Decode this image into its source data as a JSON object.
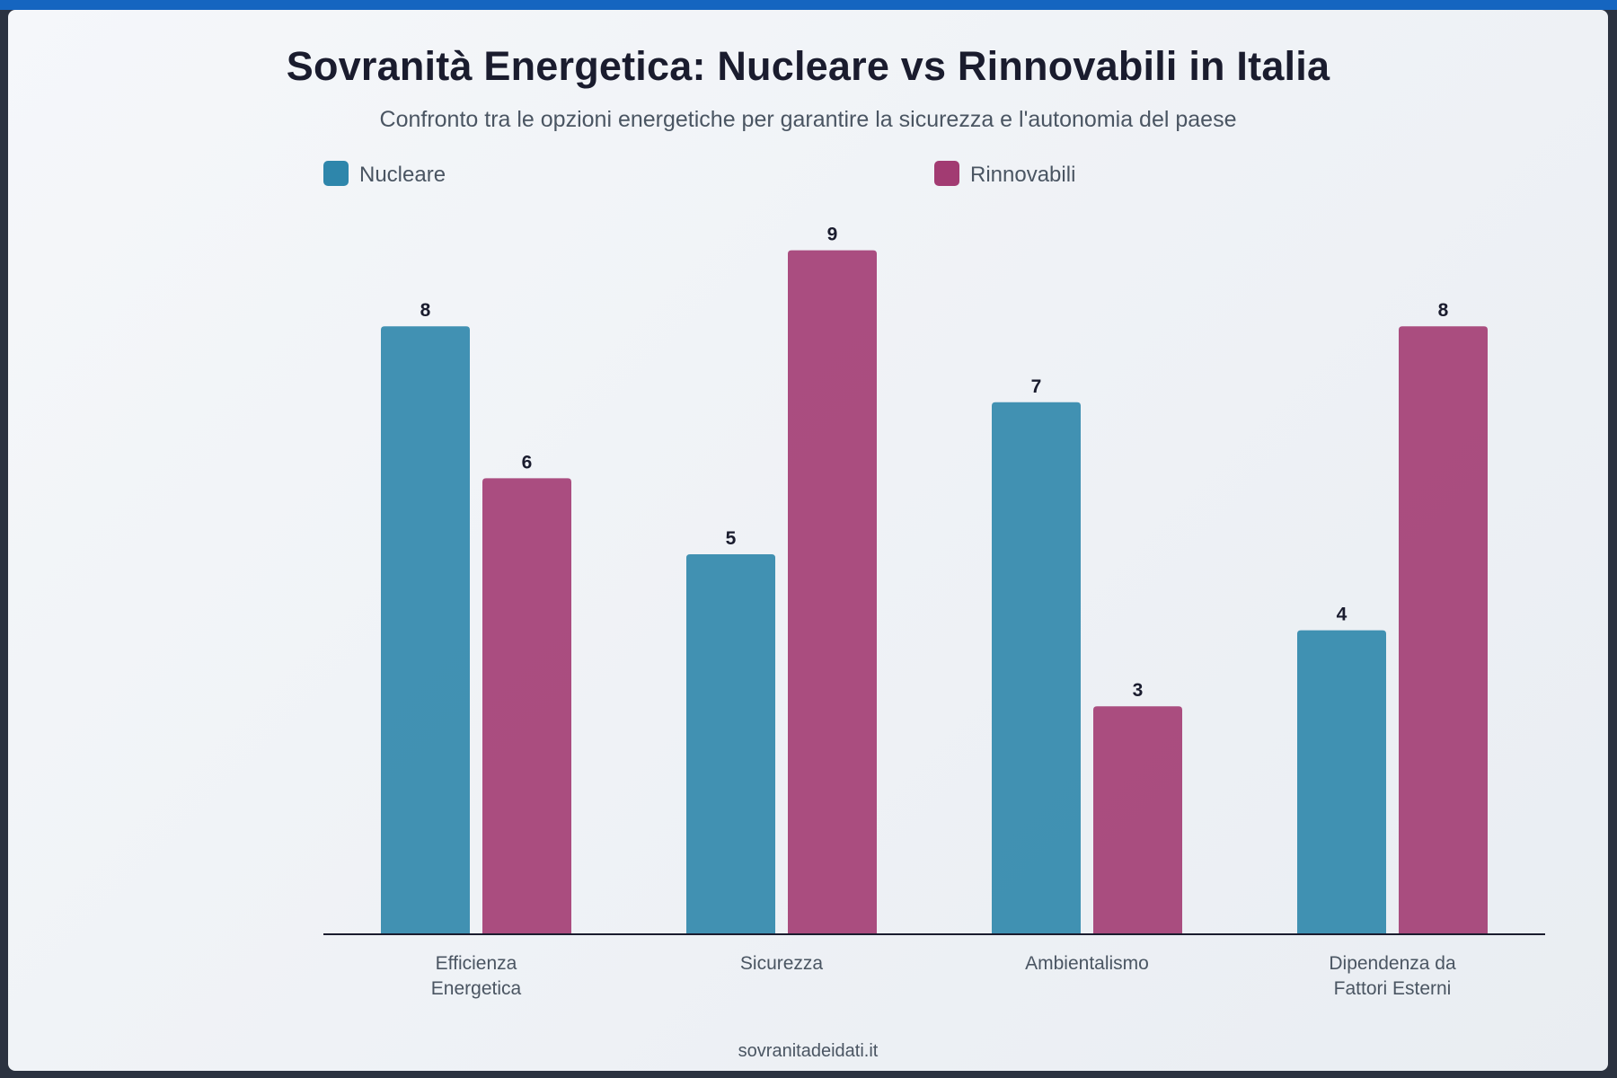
{
  "title": "Sovranità Energetica: Nucleare vs Rinnovabili in Italia",
  "subtitle": "Confronto tra le opzioni energetiche per garantire la sicurezza e l'autonomia del paese",
  "footer": "sovranitadeidati.it",
  "colors": {
    "nucleare": "#2e86ab",
    "rinnovabili": "#a23b72",
    "accent_bar": "#1565c0"
  },
  "chart_data": {
    "type": "bar",
    "categories": [
      [
        "Efficienza",
        "Energetica"
      ],
      [
        "Sicurezza"
      ],
      [
        "Ambientalismo"
      ],
      [
        "Dipendenza da",
        "Fattori Esterni"
      ]
    ],
    "series": [
      {
        "name": "Nucleare",
        "values": [
          8,
          5,
          7,
          4
        ],
        "color": "#2e86ab"
      },
      {
        "name": "Rinnovabili",
        "values": [
          6,
          9,
          3,
          8
        ],
        "color": "#a23b72"
      }
    ],
    "ylim": [
      0,
      9
    ],
    "grid": false,
    "legend_position": "top"
  }
}
